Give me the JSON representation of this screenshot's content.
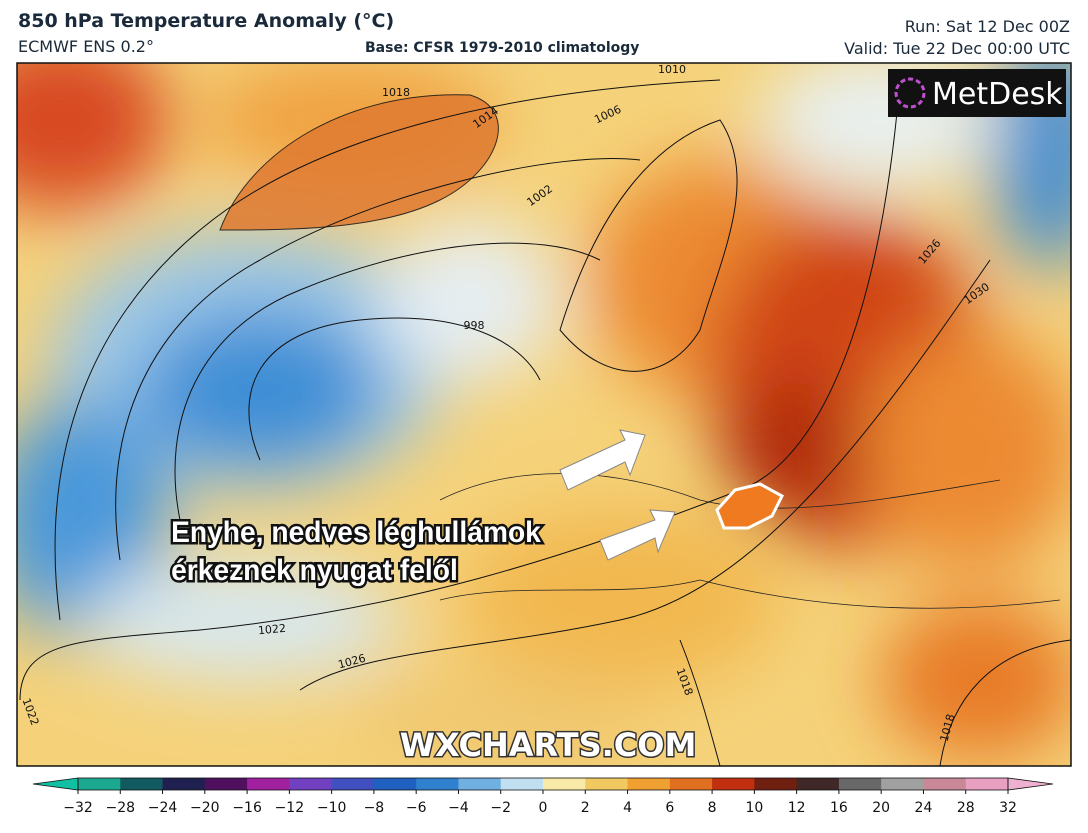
{
  "header": {
    "title": "850 hPa Temperature Anomaly (°C)",
    "model": "ECMWF ENS 0.2°",
    "base": "Base: CFSR 1979-2010 climatology",
    "run": "Run: Sat 12 Dec 00Z",
    "valid": "Valid: Tue 22 Dec 00:00 UTC"
  },
  "logo": "MetDesk",
  "annotation": {
    "lines": [
      "Enyhe, nedves léghullámok",
      "érkeznek nyugat felől"
    ]
  },
  "watermark": "WXCHARTS.COM",
  "isobars": [
    {
      "label": "1010"
    },
    {
      "label": "1018"
    },
    {
      "label": "1014"
    },
    {
      "label": "1006"
    },
    {
      "label": "1002"
    },
    {
      "label": "998"
    },
    {
      "label": "1026"
    },
    {
      "label": "1030"
    },
    {
      "label": "1022"
    },
    {
      "label": "1026"
    },
    {
      "label": "1018"
    },
    {
      "label": "1022"
    },
    {
      "label": "1018"
    }
  ],
  "colorbar": {
    "ticks": [
      {
        "value": -32,
        "label": "−32"
      },
      {
        "value": -28,
        "label": "−28"
      },
      {
        "value": -24,
        "label": "−24"
      },
      {
        "value": -20,
        "label": "−20"
      },
      {
        "value": -16,
        "label": "−16"
      },
      {
        "value": -12,
        "label": "−12"
      },
      {
        "value": -10,
        "label": "−10"
      },
      {
        "value": -8,
        "label": "−8"
      },
      {
        "value": -6,
        "label": "−6"
      },
      {
        "value": -4,
        "label": "−4"
      },
      {
        "value": -2,
        "label": "−2"
      },
      0,
      2,
      4,
      6,
      8,
      10,
      12,
      16,
      20,
      24,
      28,
      32
    ],
    "colors": [
      "#1aa890",
      "#105a60",
      "#202050",
      "#501060",
      "#a020a0",
      "#7040c0",
      "#4050c0",
      "#2060c0",
      "#3080d0",
      "#70b0e0",
      "#c0e0f2",
      "#f8eaa8",
      "#f2c860",
      "#f0a030",
      "#e07020",
      "#c03010",
      "#702010",
      "#402828",
      "#686868",
      "#a0a0a0",
      "#c88898",
      "#e8a0c0"
    ],
    "under": "#10c0a0",
    "over": "#f0b0d0"
  }
}
